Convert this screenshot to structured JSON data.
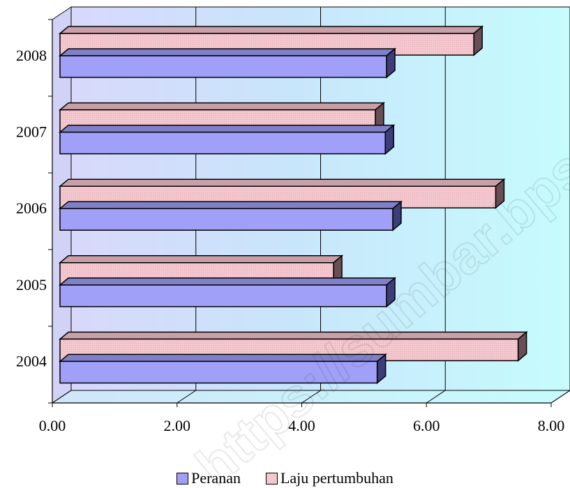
{
  "chart_data": {
    "type": "bar",
    "orientation": "horizontal",
    "categories": [
      "2004",
      "2005",
      "2006",
      "2007",
      "2008"
    ],
    "series": [
      {
        "name": "Peranan",
        "values": [
          5.4,
          5.55,
          5.65,
          5.53,
          5.55
        ],
        "color": "#a0a0f8"
      },
      {
        "name": "Laju pertumbuhan",
        "values": [
          7.66,
          4.7,
          7.3,
          5.37,
          6.95
        ],
        "color": "#f4c8cf"
      }
    ],
    "xlim": [
      0,
      8
    ],
    "xticks": [
      "0.00",
      "2.00",
      "4.00",
      "6.00",
      "8.00"
    ],
    "grid": true,
    "legend": "bottom",
    "title": "",
    "xlabel": "",
    "ylabel": "",
    "watermark": "https://sumbar.bps.go.id"
  }
}
